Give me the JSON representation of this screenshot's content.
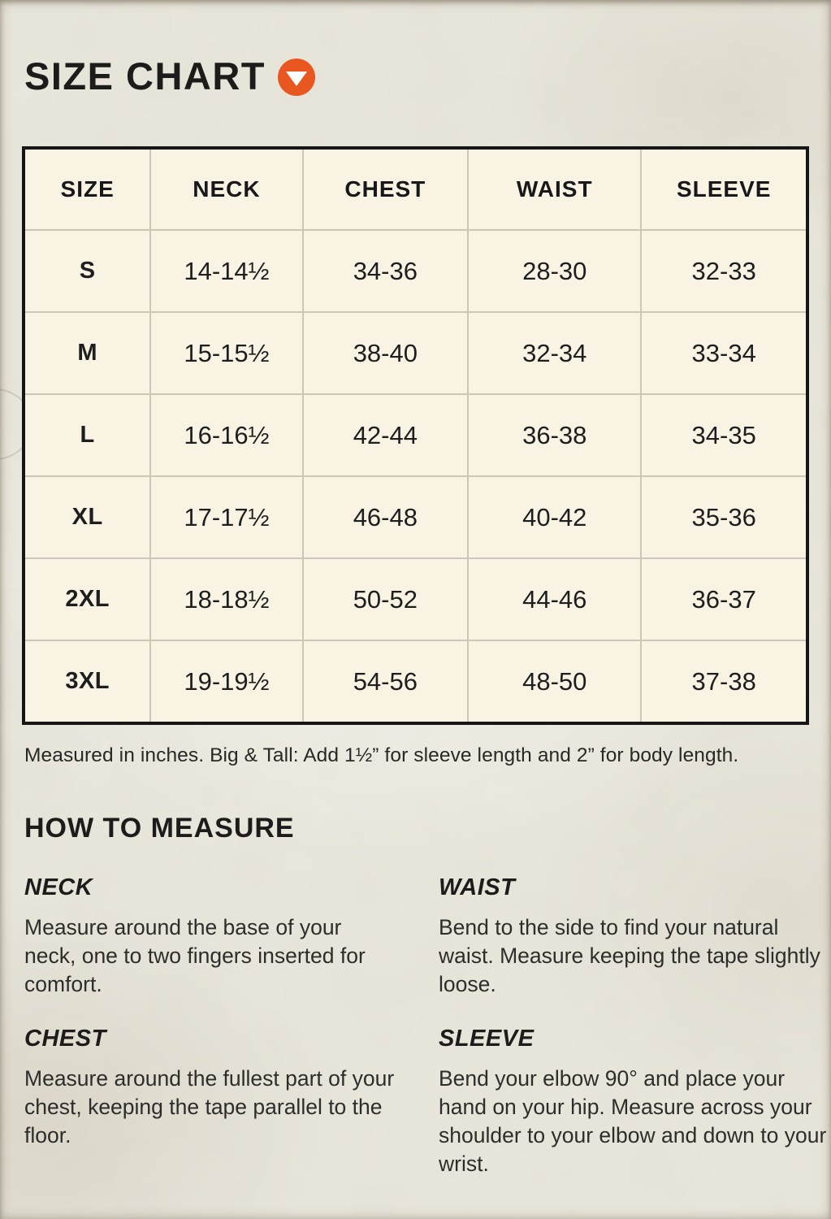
{
  "header": {
    "title": "SIZE CHART",
    "expand_icon": "chevron-down"
  },
  "chart_data": {
    "type": "table",
    "units": "inches",
    "columns": [
      "SIZE",
      "NECK",
      "CHEST",
      "WAIST",
      "SLEEVE"
    ],
    "rows": [
      [
        "S",
        "14-14½",
        "34-36",
        "28-30",
        "32-33"
      ],
      [
        "M",
        "15-15½",
        "38-40",
        "32-34",
        "33-34"
      ],
      [
        "L",
        "16-16½",
        "42-44",
        "36-38",
        "34-35"
      ],
      [
        "XL",
        "17-17½",
        "46-48",
        "40-42",
        "35-36"
      ],
      [
        "2XL",
        "18-18½",
        "50-52",
        "44-46",
        "36-37"
      ],
      [
        "3XL",
        "19-19½",
        "54-56",
        "48-50",
        "37-38"
      ]
    ]
  },
  "note": "Measured in inches. Big & Tall: Add 1½” for sleeve length and 2” for body length.",
  "how_to_measure": {
    "heading": "HOW TO MEASURE",
    "sections": [
      {
        "label": "NECK",
        "text": "Measure around the base of your neck, one to two fingers inserted for comfort."
      },
      {
        "label": "WAIST",
        "text": "Bend to the side to find your natural waist. Measure keeping the tape slightly loose."
      },
      {
        "label": "CHEST",
        "text": "Measure around the fullest part of your chest, keeping the tape parallel to the floor."
      },
      {
        "label": "SLEEVE",
        "text": "Bend your elbow 90° and place your hand on your hip. Measure across your shoulder to your elbow and down to your wrist."
      }
    ]
  },
  "colors": {
    "accent_orange": "#E8571F",
    "ink": "#1D1C1A",
    "table_bg": "#F9F3E3",
    "page_bg": "#E9E6DC"
  }
}
